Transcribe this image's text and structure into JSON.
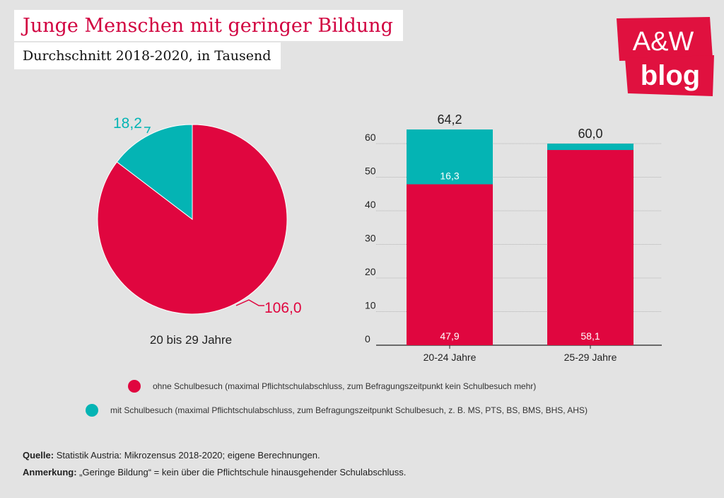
{
  "header": {
    "title": "Junge Menschen mit geringer Bildung",
    "subtitle": "Durchschnitt 2018-2020, in Tausend"
  },
  "logo": {
    "line1": "A&W",
    "line2": "blog",
    "color": "#e0113f"
  },
  "colors": {
    "red": "#e0063f",
    "teal": "#04b4b4"
  },
  "chart_data": [
    {
      "type": "pie",
      "title": "",
      "caption": "20 bis 29 Jahre",
      "slices": [
        {
          "series": "ohne Schulbesuch",
          "value": 106.0,
          "label": "106,0"
        },
        {
          "series": "mit Schulbesuch",
          "value": 18.2,
          "label": "18,2"
        }
      ]
    },
    {
      "type": "bar",
      "stacked": true,
      "categories": [
        "20-24 Jahre",
        "25-29 Jahre"
      ],
      "series": [
        {
          "name": "ohne Schulbesuch",
          "values": [
            47.9,
            58.1
          ],
          "labels": [
            "47,9",
            "58,1"
          ]
        },
        {
          "name": "mit Schulbesuch",
          "values": [
            16.3,
            1.9
          ],
          "labels": [
            "16,3",
            ""
          ]
        }
      ],
      "totals": [
        "64,2",
        "60,0"
      ],
      "yticks": [
        0,
        10,
        20,
        30,
        40,
        50,
        60
      ],
      "ylim": [
        0,
        66
      ],
      "grid": true
    }
  ],
  "legend": {
    "items": [
      {
        "color": "#e0063f",
        "text": "ohne Schulbesuch (maximal Pflichtschulabschluss, zum Befragungszeitpunkt kein Schulbesuch mehr)"
      },
      {
        "color": "#04b4b4",
        "text": "mit Schulbesuch (maximal Pflichtschulabschluss, zum Befragungszeitpunkt Schulbesuch, z. B. MS, PTS, BS, BMS, BHS, AHS)"
      }
    ]
  },
  "footer": {
    "source_label": "Quelle:",
    "source_text": " Statistik Austria: Mikrozensus 2018-2020; eigene Berechnungen.",
    "note_label": "Anmerkung:",
    "note_text": " „Geringe Bildung“ = kein über die Pflichtschule hinausgehender Schulabschluss."
  }
}
